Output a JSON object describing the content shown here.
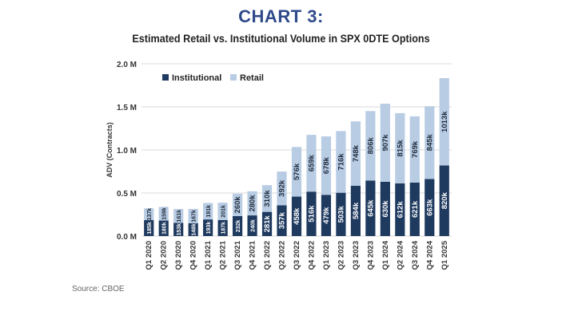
{
  "heading": "CHART 3:",
  "source": "Source: CBOE",
  "colors": {
    "institutional": "#1f3a5f",
    "retail": "#b8cce4",
    "grid": "#d9d9d9"
  },
  "chart_data": {
    "type": "bar",
    "stacked": true,
    "title": "Estimated Retail vs. Institutional Volume in SPX 0DTE Options",
    "ylabel": "ADV (Contracts)",
    "xlabel": "",
    "ylim": [
      0,
      2000000
    ],
    "yticks": [
      0,
      500000,
      1000000,
      1500000,
      2000000
    ],
    "ytick_labels": [
      "0.0 M",
      "0.5 M",
      "1.0 M",
      "1.5 M",
      "2.0 M"
    ],
    "legend_position": "top-left",
    "grid": true,
    "categories": [
      "Q1 2020",
      "Q2 2020",
      "Q3 2020",
      "Q4 2020",
      "Q1 2021",
      "Q2 2021",
      "Q3 2021",
      "Q4 2021",
      "Q1 2022",
      "Q2 2022",
      "Q3 2022",
      "Q4 2022",
      "Q1 2023",
      "Q2 2023",
      "Q3 2023",
      "Q4 2023",
      "Q1 2024",
      "Q2 2024",
      "Q3 2024",
      "Q4 2024",
      "Q1 2025"
    ],
    "series": [
      {
        "name": "Institutional",
        "values": [
          185000,
          180000,
          153000,
          148000,
          193000,
          187000,
          232000,
          240000,
          281000,
          357000,
          458000,
          516000,
          479000,
          503000,
          584000,
          645000,
          630000,
          612000,
          621000,
          663000,
          820000
        ],
        "labels": [
          "185k",
          "180k",
          "153k",
          "148k",
          "193k",
          "187k",
          "232k",
          "240k",
          "281k",
          "357k",
          "458k",
          "516k",
          "479k",
          "503k",
          "584k",
          "645k",
          "630k",
          "612k",
          "621k",
          "663k",
          "820k"
        ]
      },
      {
        "name": "Retail",
        "values": [
          137000,
          159000,
          161000,
          167000,
          191000,
          201000,
          260000,
          280000,
          310000,
          392000,
          576000,
          659000,
          678000,
          716000,
          748000,
          806000,
          907000,
          815000,
          769000,
          845000,
          1013000
        ],
        "labels": [
          "137k",
          "159k",
          "161k",
          "167k",
          "191k",
          "201k",
          "260k",
          "280k",
          "310k",
          "392k",
          "576k",
          "659k",
          "678k",
          "716k",
          "748k",
          "806k",
          "907k",
          "815k",
          "769k",
          "845k",
          "1013k"
        ]
      }
    ]
  }
}
